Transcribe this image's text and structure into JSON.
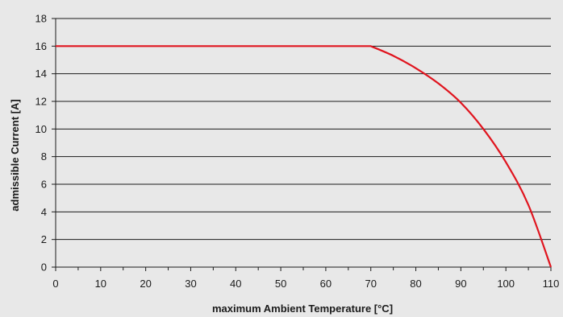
{
  "chart_data": {
    "type": "line",
    "title": "",
    "xlabel": "maximum Ambient Temperature [°C]",
    "ylabel": "admissible Current [A]",
    "xlim": [
      0,
      110
    ],
    "ylim": [
      0,
      18
    ],
    "xticks": [
      0,
      10,
      20,
      30,
      40,
      50,
      60,
      70,
      80,
      90,
      100,
      110
    ],
    "yticks": [
      0,
      2,
      4,
      6,
      8,
      10,
      12,
      14,
      16,
      18
    ],
    "grid": "horizontal",
    "legend": "none",
    "series": [
      {
        "color": "#e0141e",
        "x": [
          0,
          70,
          75,
          80,
          85,
          90,
          95,
          100,
          105,
          110
        ],
        "y": [
          16,
          16,
          15.3,
          14.4,
          13.3,
          11.9,
          10.0,
          7.6,
          4.5,
          0
        ]
      }
    ]
  },
  "colors": {
    "background": "#e8e8e8",
    "gridline": "#1a1a1a",
    "axis": "#1a1a1a"
  }
}
